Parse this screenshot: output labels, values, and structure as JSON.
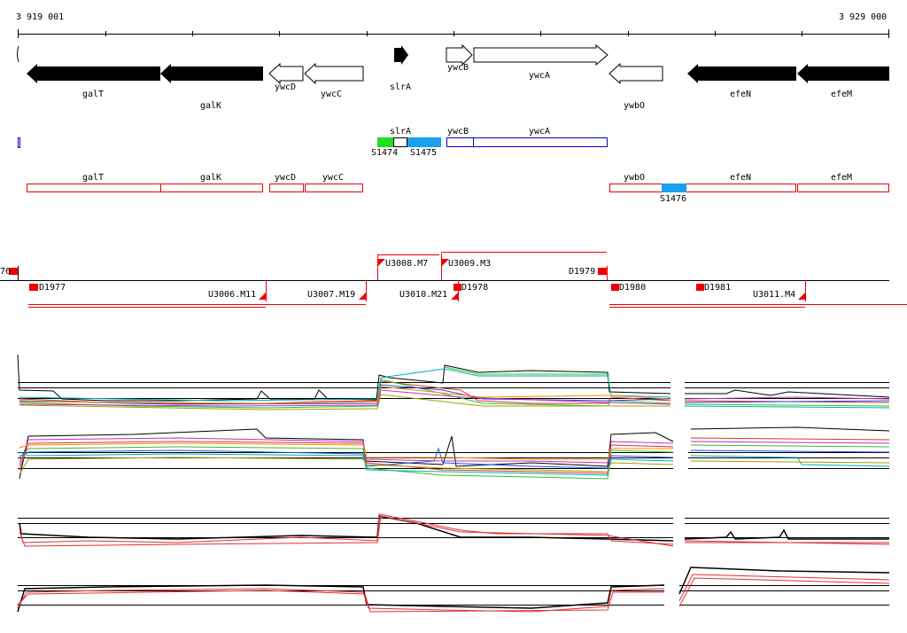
{
  "coordinates": {
    "start": "3 919 001",
    "end": "3 929 000"
  },
  "genes": {
    "galT": "galT",
    "galK": "galK",
    "ywcD": "ywcD",
    "ywcC": "ywcC",
    "slrA": "slrA",
    "ywcB": "ywcB",
    "ywcA": "ywcA",
    "ywbO": "ywbO",
    "efeN": "efeN",
    "efeM": "efeM"
  },
  "segments": {
    "s1474": "S1474",
    "s1475": "S1475",
    "s1476": "S1476"
  },
  "features": {
    "d1977": "D1977",
    "d1978": "D1978",
    "d1979": "D1979",
    "d1980": "D1980",
    "d1981": "D1981",
    "u3006": "U3006.M11",
    "u3007": "U3007.M19",
    "u3008": "U3008.M7",
    "u3009": "U3009.M3",
    "u3010": "U3010.M21",
    "u3011": "U3011.M4",
    "edge": "76"
  },
  "colors": {
    "red": "#ee0000",
    "blue": "#0000cc",
    "green": "#22dd22",
    "cyan": "#1aa0ee",
    "black": "#000000"
  },
  "icons": [
    "strand-arrow-icon",
    "feature-flag-icon"
  ]
}
